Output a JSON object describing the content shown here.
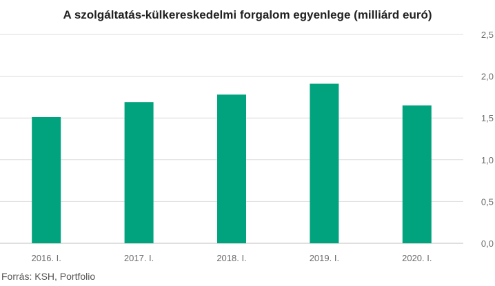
{
  "chart_data": {
    "type": "bar",
    "title": "A szolgáltatás-külkereskedelmi forgalom egyenlege (milliárd euró)",
    "categories": [
      "2016. I.",
      "2017. I.",
      "2018. I.",
      "2019. I.",
      "2020. I."
    ],
    "values": [
      1.51,
      1.69,
      1.78,
      1.91,
      1.65
    ],
    "ylim": [
      0,
      2.5
    ],
    "yticks": [
      "0,0",
      "0,5",
      "1,0",
      "1,5",
      "2,0",
      "2,5"
    ],
    "xlabel": "",
    "ylabel": "",
    "grid": true,
    "axis_position": "right",
    "bar_color": "#00a37d",
    "grid_color": "#dcdcdc"
  },
  "source": "Forrás: KSH, Portfolio"
}
